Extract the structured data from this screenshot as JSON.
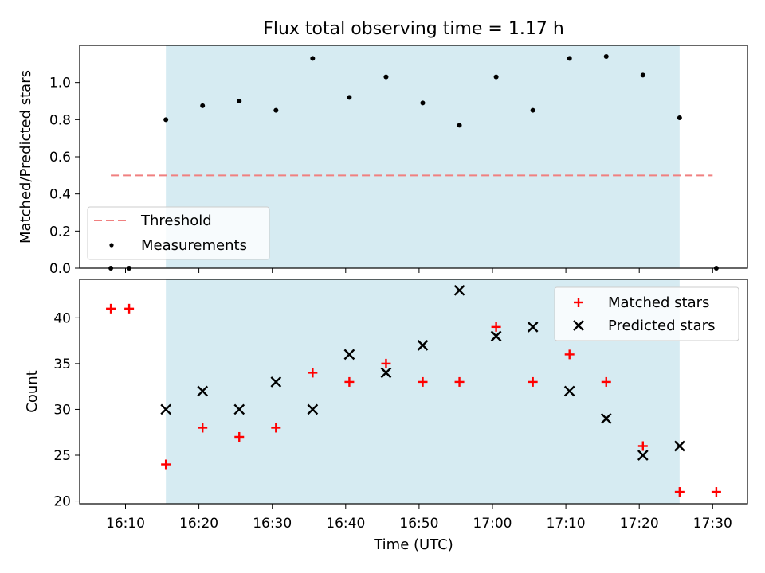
{
  "chart_data": [
    {
      "type": "scatter",
      "title": "Flux total observing time = 1.17 h",
      "xlabel": "",
      "ylabel": "Matched/Predicted stars",
      "ylim": [
        0,
        1.2
      ],
      "yticks": [
        "0.0",
        "0.2",
        "0.4",
        "0.6",
        "0.8",
        "1.0"
      ],
      "shaded_span": [
        "16:15:30",
        "17:25:30"
      ],
      "threshold": {
        "name": "Threshold",
        "value": 0.5,
        "x": [
          "16:08",
          "17:30"
        ],
        "color": "#f08080",
        "style": "dashed"
      },
      "series": [
        {
          "name": "Measurements",
          "marker": "dot",
          "color": "#000000",
          "x": [
            "16:08",
            "16:10:30",
            "16:15:30",
            "16:20:30",
            "16:25:30",
            "16:30:30",
            "16:35:30",
            "16:40:30",
            "16:45:30",
            "16:50:30",
            "16:55:30",
            "17:00:30",
            "17:05:30",
            "17:10:30",
            "17:15:30",
            "17:20:30",
            "17:25:30",
            "17:30:30"
          ],
          "y": [
            0.0,
            0.0,
            0.8,
            0.875,
            0.9,
            0.85,
            1.13,
            0.92,
            1.03,
            0.89,
            0.77,
            1.03,
            0.85,
            1.13,
            1.14,
            1.04,
            0.81,
            0.0
          ]
        }
      ],
      "legend": "lower-left"
    },
    {
      "type": "scatter",
      "title": "",
      "xlabel": "Time (UTC)",
      "ylabel": "Count",
      "ylim": [
        19.7,
        44.2
      ],
      "yticks": [
        "20",
        "25",
        "30",
        "35",
        "40"
      ],
      "xticks": [
        "16:10",
        "16:20",
        "16:30",
        "16:40",
        "16:50",
        "17:00",
        "17:10",
        "17:20",
        "17:30"
      ],
      "shaded_span": [
        "16:15:30",
        "17:25:30"
      ],
      "series": [
        {
          "name": "Matched stars",
          "marker": "plus",
          "color": "#ff0000",
          "x": [
            "16:08",
            "16:10:30",
            "16:15:30",
            "16:20:30",
            "16:25:30",
            "16:30:30",
            "16:35:30",
            "16:40:30",
            "16:45:30",
            "16:50:30",
            "16:55:30",
            "17:00:30",
            "17:05:30",
            "17:10:30",
            "17:15:30",
            "17:20:30",
            "17:25:30",
            "17:30:30"
          ],
          "y": [
            41,
            41,
            24,
            28,
            27,
            28,
            34,
            33,
            35,
            33,
            33,
            39,
            33,
            36,
            33,
            26,
            21,
            21
          ]
        },
        {
          "name": "Predicted stars",
          "marker": "x",
          "color": "#000000",
          "x": [
            "16:15:30",
            "16:20:30",
            "16:25:30",
            "16:30:30",
            "16:35:30",
            "16:40:30",
            "16:45:30",
            "16:50:30",
            "16:55:30",
            "17:00:30",
            "17:05:30",
            "17:10:30",
            "17:15:30",
            "17:20:30",
            "17:25:30"
          ],
          "y": [
            30,
            32,
            30,
            33,
            30,
            36,
            34,
            37,
            43,
            38,
            39,
            32,
            29,
            25,
            26
          ]
        }
      ],
      "legend": "upper-right"
    }
  ]
}
